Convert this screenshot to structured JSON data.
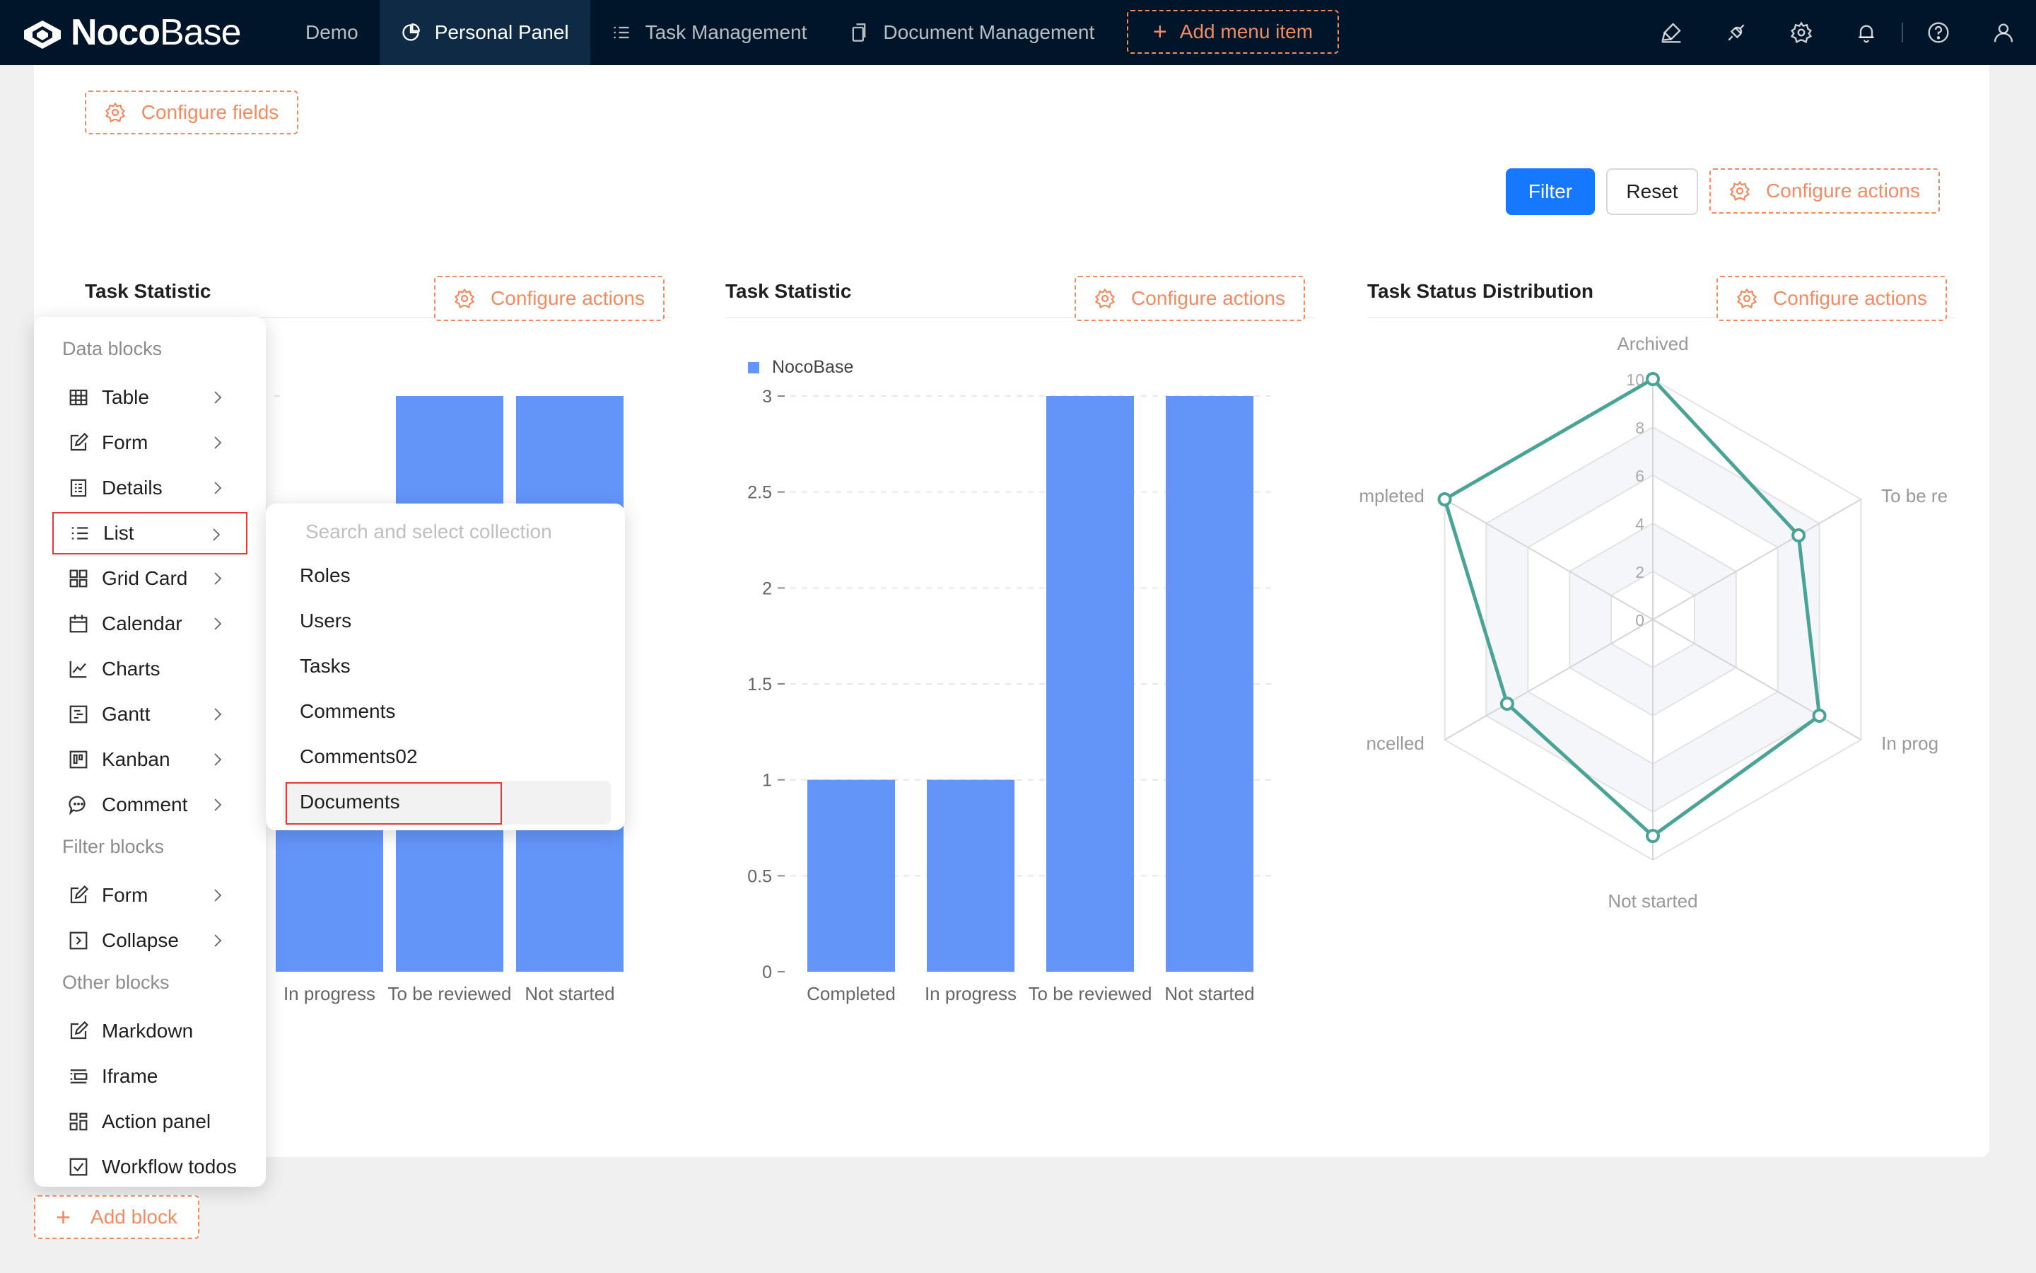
{
  "app": {
    "logo_bold": "Noco",
    "logo_light": "Base"
  },
  "nav": {
    "items": [
      {
        "label": "Demo",
        "icon": "none"
      },
      {
        "label": "Personal Panel",
        "icon": "pie-chart-icon",
        "active": true
      },
      {
        "label": "Task Management",
        "icon": "list-icon"
      },
      {
        "label": "Document Management",
        "icon": "copy-icon"
      }
    ],
    "add_menu_label": "Add menu item",
    "right_icons": [
      "highlighter-icon",
      "plugin-icon",
      "settings-icon",
      "bell-icon",
      "help-icon",
      "user-icon"
    ]
  },
  "page": {
    "configure_fields_label": "Configure fields",
    "filter_label": "Filter",
    "reset_label": "Reset",
    "configure_actions_label": "Configure actions",
    "add_block_label": "Add block"
  },
  "colors": {
    "topbar": "#001529",
    "accent_dashed": "#f18b62",
    "primary": "#1677ff",
    "bar": "#6395f9",
    "radar": "#4aa397",
    "highlight_border": "#e23a3a"
  },
  "charts": {
    "chart1_title": "Task Statistic",
    "chart2_title": "Task Statistic",
    "chart3_title": "Task Status Distribution"
  },
  "chart_data": [
    {
      "type": "bar",
      "title": "Task Statistic",
      "categories": [
        "In progress",
        "To be reviewed",
        "Not started"
      ],
      "values": [
        1,
        3,
        3
      ],
      "ylim": [
        0,
        3
      ],
      "note_visible_categories_only": true
    },
    {
      "type": "bar",
      "title": "Task Statistic",
      "legend": "NocoBase",
      "categories": [
        "Completed",
        "In progress",
        "To be reviewed",
        "Not started"
      ],
      "values": [
        1,
        1,
        3,
        3
      ],
      "yticks": [
        "0",
        "0.5",
        "1",
        "1.5",
        "2",
        "2.5",
        "3"
      ],
      "ylim": [
        0,
        3
      ],
      "grid": true
    },
    {
      "type": "radar",
      "title": "Task Status Distribution",
      "axes": [
        "Archived",
        "To be re",
        "In prog",
        "Not started",
        "ncelled",
        "mpleted"
      ],
      "values": [
        10,
        7,
        8,
        9,
        7,
        10
      ],
      "rticks": [
        "0",
        "2",
        "4",
        "6",
        "8",
        "10"
      ],
      "rlim": [
        0,
        10
      ]
    }
  ],
  "block_menu": {
    "groups": [
      {
        "label": "Data blocks",
        "items": [
          {
            "label": "Table",
            "icon": "table-icon",
            "submenu": true
          },
          {
            "label": "Form",
            "icon": "form-icon",
            "submenu": true
          },
          {
            "label": "Details",
            "icon": "details-icon",
            "submenu": true
          },
          {
            "label": "List",
            "icon": "list-icon",
            "submenu": true,
            "highlighted": true
          },
          {
            "label": "Grid Card",
            "icon": "grid-card-icon",
            "submenu": true
          },
          {
            "label": "Calendar",
            "icon": "calendar-icon",
            "submenu": true
          },
          {
            "label": "Charts",
            "icon": "line-chart-icon",
            "submenu": false
          },
          {
            "label": "Gantt",
            "icon": "gantt-icon",
            "submenu": true
          },
          {
            "label": "Kanban",
            "icon": "kanban-icon",
            "submenu": true
          },
          {
            "label": "Comment",
            "icon": "comment-icon",
            "submenu": true
          }
        ]
      },
      {
        "label": "Filter blocks",
        "items": [
          {
            "label": "Form",
            "icon": "form-icon",
            "submenu": true
          },
          {
            "label": "Collapse",
            "icon": "collapse-icon",
            "submenu": true
          }
        ]
      },
      {
        "label": "Other blocks",
        "items": [
          {
            "label": "Markdown",
            "icon": "markdown-icon",
            "submenu": false
          },
          {
            "label": "Iframe",
            "icon": "iframe-icon",
            "submenu": false
          },
          {
            "label": "Action panel",
            "icon": "action-panel-icon",
            "submenu": false
          },
          {
            "label": "Workflow todos",
            "icon": "todo-icon",
            "submenu": false
          }
        ]
      }
    ]
  },
  "collection_menu": {
    "search_placeholder": "Search and select collection",
    "items": [
      "Roles",
      "Users",
      "Tasks",
      "Comments",
      "Comments02",
      "Documents"
    ],
    "selected": "Documents"
  }
}
